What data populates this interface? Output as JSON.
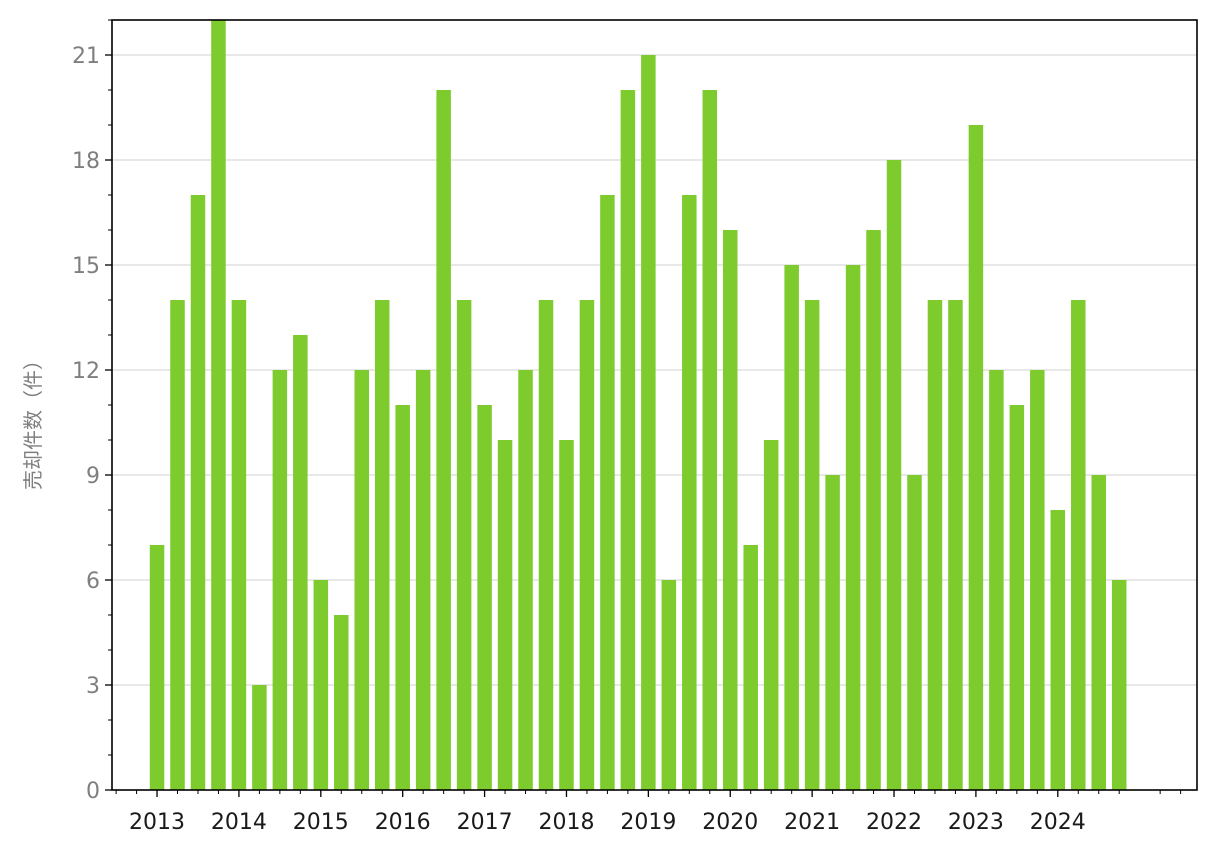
{
  "chart_data": {
    "type": "bar",
    "title": "",
    "xlabel": "",
    "ylabel": "売却件数（件）",
    "ylim": [
      0,
      22
    ],
    "yticks": [
      0,
      3,
      6,
      9,
      12,
      15,
      18,
      21
    ],
    "xticks": [
      "2013",
      "2014",
      "2015",
      "2016",
      "2017",
      "2018",
      "2019",
      "2020",
      "2021",
      "2022",
      "2023",
      "2024"
    ],
    "grid": "horizontal",
    "bar_color": "#7ecb2e",
    "series": [
      {
        "x": [
          "2013-Q1",
          "2013-Q2",
          "2013-Q3",
          "2013-Q4",
          "2014-Q1",
          "2014-Q2",
          "2014-Q3",
          "2014-Q4",
          "2015-Q1",
          "2015-Q2",
          "2015-Q3",
          "2015-Q4",
          "2016-Q1",
          "2016-Q2",
          "2016-Q3",
          "2016-Q4",
          "2017-Q1",
          "2017-Q2",
          "2017-Q3",
          "2017-Q4",
          "2018-Q1",
          "2018-Q2",
          "2018-Q3",
          "2018-Q4",
          "2019-Q1",
          "2019-Q2",
          "2019-Q3",
          "2019-Q4",
          "2020-Q1",
          "2020-Q2",
          "2020-Q3",
          "2020-Q4",
          "2021-Q1",
          "2021-Q2",
          "2021-Q3",
          "2021-Q4",
          "2022-Q1",
          "2022-Q2",
          "2022-Q3",
          "2022-Q4",
          "2023-Q1",
          "2023-Q2",
          "2023-Q3",
          "2023-Q4",
          "2024-Q1",
          "2024-Q2",
          "2024-Q3",
          "2024-Q4"
        ],
        "values": [
          7,
          14,
          17,
          22,
          14,
          3,
          12,
          13,
          6,
          5,
          12,
          14,
          11,
          12,
          20,
          14,
          11,
          10,
          12,
          14,
          10,
          14,
          17,
          20,
          21,
          6,
          17,
          20,
          16,
          7,
          10,
          15,
          14,
          9,
          15,
          16,
          18,
          9,
          14,
          14,
          19,
          12,
          11,
          12,
          8,
          14,
          9,
          6
        ]
      }
    ]
  }
}
